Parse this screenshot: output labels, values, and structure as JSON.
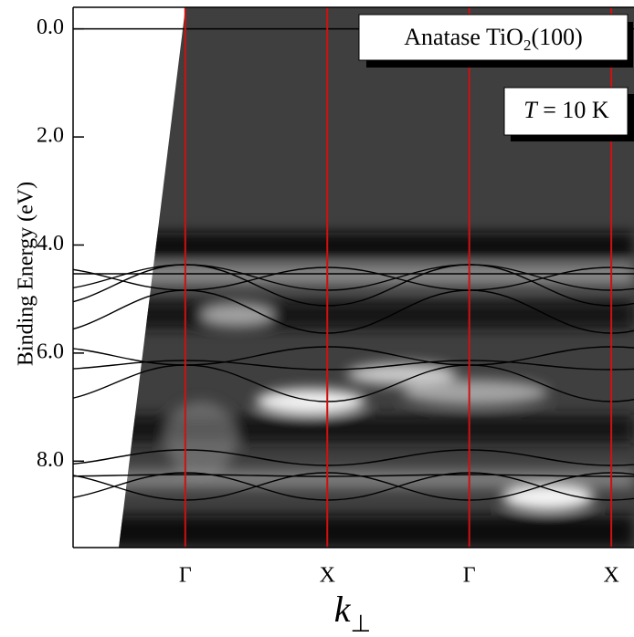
{
  "chart_data": {
    "type": "band-map",
    "ylabel": "Binding Energy (eV)",
    "xlabel": {
      "text": "k",
      "sub": "⊥"
    },
    "ylim": [
      -0.4,
      9.6
    ],
    "y_inverted": true,
    "yticks": [
      {
        "value": 0,
        "label": "0.0"
      },
      {
        "value": 2,
        "label": "2.0"
      },
      {
        "value": 4,
        "label": "4.0"
      },
      {
        "value": 6,
        "label": "6.0"
      },
      {
        "value": 8,
        "label": "8.0"
      }
    ],
    "xlim": [
      -0.79,
      3.16
    ],
    "xticks": [
      {
        "value": 0,
        "label": "Γ"
      },
      {
        "value": 1,
        "label": "X"
      },
      {
        "value": 2,
        "label": "Γ"
      },
      {
        "value": 3,
        "label": "X"
      }
    ],
    "tick_line_color": "#d01010",
    "fermi_level": 0,
    "annotations": [
      {
        "text": "Anatase TiO",
        "sub": "2",
        "suffix": "(100)"
      },
      {
        "italic": "T",
        "text": " = 10 K"
      }
    ]
  }
}
